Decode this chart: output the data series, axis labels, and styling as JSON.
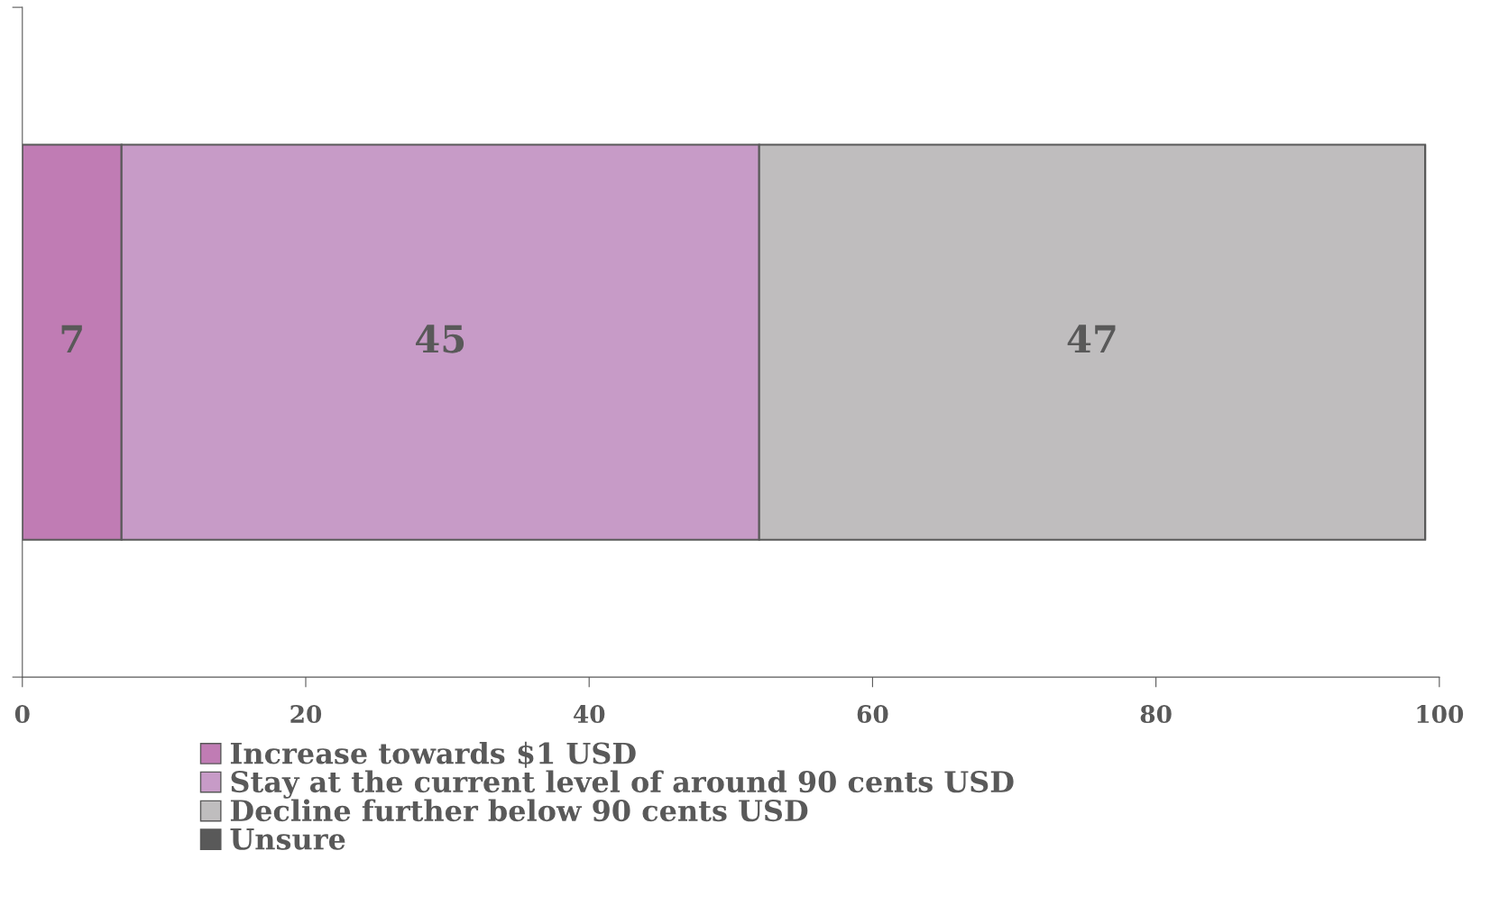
{
  "chart_data": {
    "type": "bar",
    "orientation": "horizontal",
    "stacked": true,
    "categories": [
      null
    ],
    "series": [
      {
        "name": "Increase towards $1 USD",
        "color": "#c07cb4",
        "values": [
          7
        ],
        "value_labels": [
          "7"
        ]
      },
      {
        "name": "Stay at the current level of around 90 cents USD",
        "color": "#c79bc7",
        "values": [
          45
        ],
        "value_labels": [
          "45"
        ]
      },
      {
        "name": "Decline further below 90 cents USD",
        "color": "#bfbdbe",
        "values": [
          47
        ],
        "value_labels": [
          "47"
        ]
      },
      {
        "name": "Unsure",
        "color": "#595959",
        "values": [
          0
        ],
        "value_labels": [
          null
        ]
      }
    ],
    "xlim": [
      0,
      100
    ],
    "xticks": [
      0,
      20,
      40,
      60,
      80,
      100
    ],
    "grid": false,
    "legend": "bottom"
  }
}
